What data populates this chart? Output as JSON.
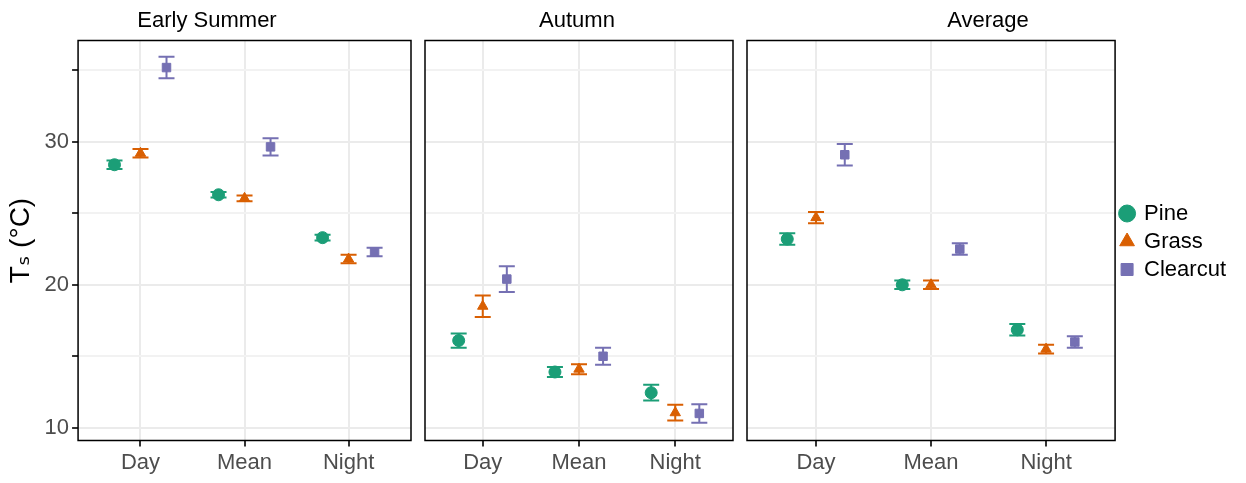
{
  "chart_data": [
    {
      "type": "scatter",
      "title": "Early Summer",
      "ylabel": "Tₛ (°C)",
      "categories": [
        "Day",
        "Mean",
        "Night"
      ],
      "ylim": [
        9.1,
        37.1
      ],
      "yticks": [
        10,
        {
          "value": 15,
          "label": null
        },
        20,
        {
          "value": 25,
          "label": null
        },
        30,
        {
          "value": 35,
          "label": null
        }
      ],
      "grid": true,
      "legend": false,
      "series": [
        {
          "color": "#1b9e77",
          "marker": "circle",
          "values": [
            28.4,
            26.3,
            23.3
          ],
          "errors": [
            0.3,
            0.2,
            0.2
          ]
        },
        {
          "color": "#d95f02",
          "marker": "triangle",
          "values": [
            29.2,
            26.05,
            21.8
          ],
          "errors": [
            0.3,
            0.2,
            0.3
          ]
        },
        {
          "color": "#7570b3",
          "marker": "square",
          "values": [
            35.2,
            29.65,
            22.3
          ],
          "errors": [
            0.75,
            0.6,
            0.3
          ]
        }
      ]
    },
    {
      "type": "scatter",
      "title": "Autumn",
      "categories": [
        "Day",
        "Mean",
        "Night"
      ],
      "ylim": [
        9.1,
        37.1
      ],
      "yticks": [
        10,
        {
          "value": 15,
          "label": null
        },
        20,
        {
          "value": 25,
          "label": null
        },
        30,
        {
          "value": 35,
          "label": null
        }
      ],
      "grid": true,
      "legend": false,
      "tick_labels": "x",
      "series": [
        {
          "color": "#1b9e77",
          "marker": "circle",
          "values": [
            16.1,
            13.9,
            12.45
          ],
          "errors": [
            0.5,
            0.35,
            0.55
          ]
        },
        {
          "color": "#d95f02",
          "marker": "triangle",
          "values": [
            18.5,
            14.1,
            11.05
          ],
          "errors": [
            0.75,
            0.35,
            0.55
          ]
        },
        {
          "color": "#7570b3",
          "marker": "square",
          "values": [
            20.4,
            15.0,
            11.0
          ],
          "errors": [
            0.9,
            0.6,
            0.65
          ]
        }
      ]
    },
    {
      "type": "scatter",
      "title": "Average",
      "categories": [
        "Day",
        "Mean",
        "Night"
      ],
      "ylim": [
        9.1,
        37.1
      ],
      "yticks": [
        10,
        {
          "value": 15,
          "label": null
        },
        20,
        {
          "value": 25,
          "label": null
        },
        30,
        {
          "value": 35,
          "label": null
        }
      ],
      "grid": true,
      "legend": "right",
      "tick_labels": "x",
      "series": [
        {
          "name": "Pine",
          "color": "#1b9e77",
          "marker": "circle",
          "values": [
            23.2,
            20.0,
            16.85
          ],
          "errors": [
            0.4,
            0.3,
            0.4
          ]
        },
        {
          "name": "Grass",
          "color": "#d95f02",
          "marker": "triangle",
          "values": [
            24.7,
            20.0,
            15.5
          ],
          "errors": [
            0.4,
            0.3,
            0.3
          ]
        },
        {
          "name": "Clearcut",
          "color": "#7570b3",
          "marker": "square",
          "values": [
            29.1,
            22.5,
            16.0
          ],
          "errors": [
            0.75,
            0.4,
            0.4
          ]
        }
      ]
    }
  ]
}
